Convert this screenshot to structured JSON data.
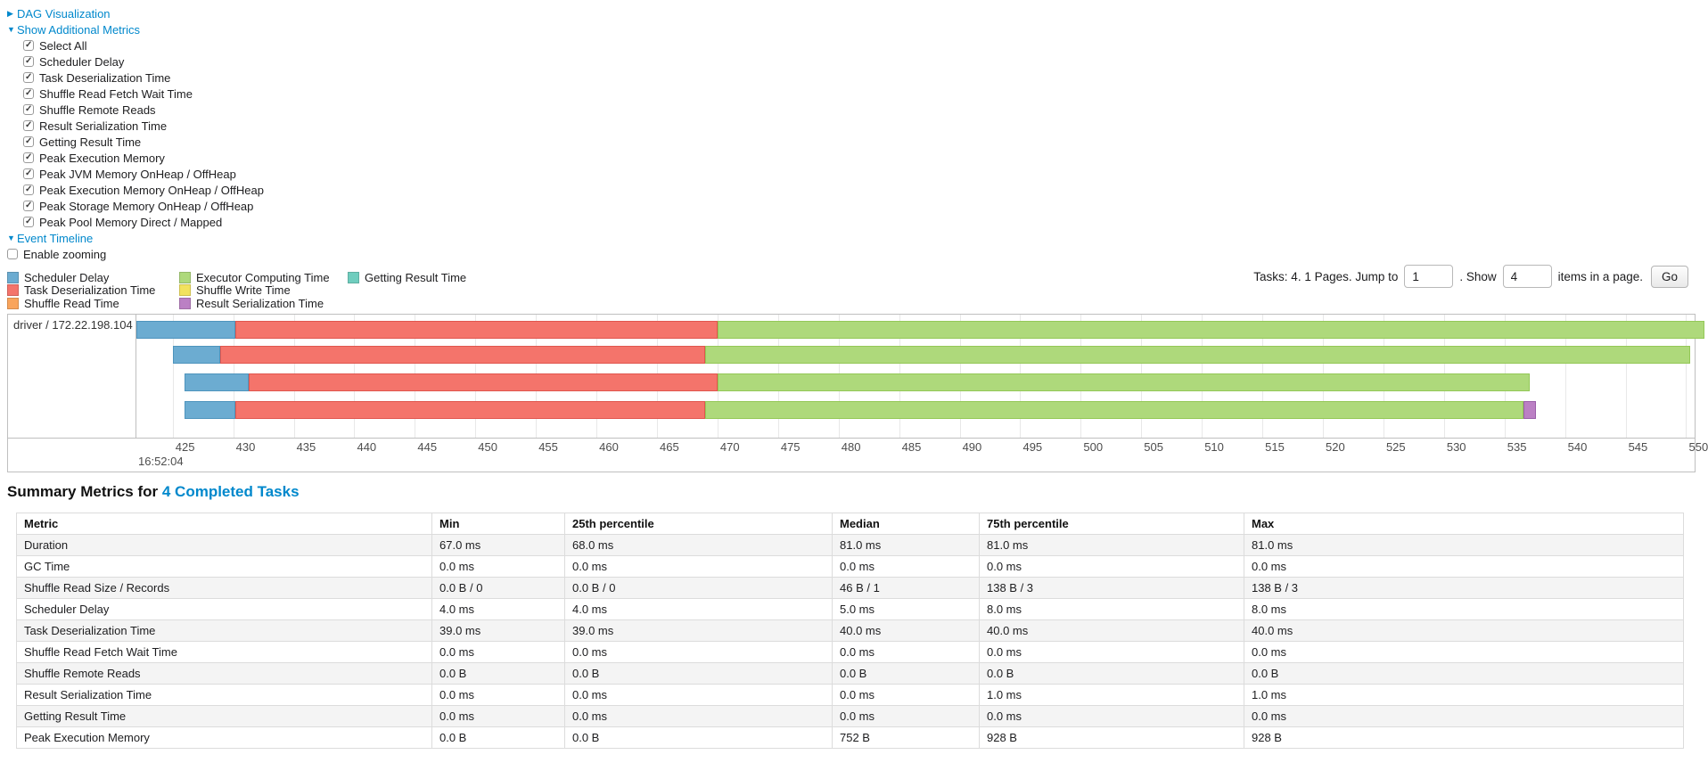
{
  "toggles": {
    "dag_label": "DAG Visualization",
    "metrics_label": "Show Additional Metrics",
    "event_timeline_label": "Event Timeline",
    "enable_zooming_label": "Enable zooming"
  },
  "metric_checkboxes": [
    "Select All",
    "Scheduler Delay",
    "Task Deserialization Time",
    "Shuffle Read Fetch Wait Time",
    "Shuffle Remote Reads",
    "Result Serialization Time",
    "Getting Result Time",
    "Peak Execution Memory",
    "Peak JVM Memory OnHeap / OffHeap",
    "Peak Execution Memory OnHeap / OffHeap",
    "Peak Storage Memory OnHeap / OffHeap",
    "Peak Pool Memory Direct / Mapped"
  ],
  "pagination": {
    "tasks_text": "Tasks: 4. 1 Pages. Jump to",
    "jump_value": "1",
    "show_text": ". Show",
    "show_value": "4",
    "items_text": "items in a page.",
    "go_label": "Go"
  },
  "chart_data": {
    "type": "timeline",
    "group": "driver / 172.22.198.104",
    "axis": {
      "domain": [
        422.0,
        550.7
      ],
      "tick_start": 425,
      "tick_step": 5,
      "tick_end": 550,
      "major_label": "16:52:04",
      "unit": "ms within 16:52:04"
    },
    "colors": {
      "scheduler_delay": "#6CACD1",
      "task_deserialization": "#F4746B",
      "shuffle_read": "#F9A45C",
      "executor_computing": "#AED97B",
      "shuffle_write": "#F2E25E",
      "result_serialization": "#BB80C4",
      "getting_result": "#6FCDBE"
    },
    "borders": {
      "scheduler_delay": "#4E94BD",
      "task_deserialization": "#E0564E",
      "shuffle_read": "#E08A3C",
      "executor_computing": "#94C857",
      "shuffle_write": "#D9C93E",
      "result_serialization": "#9A5FA8",
      "getting_result": "#4FB3A4"
    },
    "legend": [
      {
        "key": "scheduler_delay",
        "label": "Scheduler Delay"
      },
      {
        "key": "task_deserialization",
        "label": "Task Deserialization Time"
      },
      {
        "key": "shuffle_read",
        "label": "Shuffle Read Time"
      },
      {
        "key": "executor_computing",
        "label": "Executor Computing Time"
      },
      {
        "key": "shuffle_write",
        "label": "Shuffle Write Time"
      },
      {
        "key": "result_serialization",
        "label": "Result Serialization Time"
      },
      {
        "key": "getting_result",
        "label": "Getting Result Time"
      }
    ],
    "tasks": [
      {
        "segments": [
          {
            "name": "scheduler_delay",
            "start": 422.0,
            "end": 430.2
          },
          {
            "name": "task_deserialization",
            "start": 430.2,
            "end": 470.0
          },
          {
            "name": "executor_computing",
            "start": 470.0,
            "end": 551.5
          }
        ]
      },
      {
        "segments": [
          {
            "name": "scheduler_delay",
            "start": 425.0,
            "end": 428.9
          },
          {
            "name": "task_deserialization",
            "start": 428.9,
            "end": 469.0
          },
          {
            "name": "executor_computing",
            "start": 469.0,
            "end": 550.3
          }
        ]
      },
      {
        "segments": [
          {
            "name": "scheduler_delay",
            "start": 426.0,
            "end": 431.3
          },
          {
            "name": "task_deserialization",
            "start": 431.3,
            "end": 470.0
          },
          {
            "name": "executor_computing",
            "start": 470.0,
            "end": 537.1
          }
        ]
      },
      {
        "segments": [
          {
            "name": "scheduler_delay",
            "start": 426.0,
            "end": 430.2
          },
          {
            "name": "task_deserialization",
            "start": 430.2,
            "end": 469.0
          },
          {
            "name": "executor_computing",
            "start": 469.0,
            "end": 536.6
          },
          {
            "name": "result_serialization",
            "start": 536.6,
            "end": 537.6
          }
        ]
      }
    ]
  },
  "summary": {
    "title_prefix": "Summary Metrics for",
    "title_link": "4 Completed Tasks"
  },
  "table": {
    "headers": [
      "Metric",
      "Min",
      "25th percentile",
      "Median",
      "75th percentile",
      "Max"
    ],
    "rows": [
      {
        "metric": "Duration",
        "values": [
          "67.0 ms",
          "68.0 ms",
          "81.0 ms",
          "81.0 ms",
          "81.0 ms"
        ]
      },
      {
        "metric": "GC Time",
        "values": [
          "0.0 ms",
          "0.0 ms",
          "0.0 ms",
          "0.0 ms",
          "0.0 ms"
        ]
      },
      {
        "metric": "Shuffle Read Size / Records",
        "values": [
          "0.0 B / 0",
          "0.0 B / 0",
          "46 B / 1",
          "138 B / 3",
          "138 B / 3"
        ]
      },
      {
        "metric": "Scheduler Delay",
        "values": [
          "4.0 ms",
          "4.0 ms",
          "5.0 ms",
          "8.0 ms",
          "8.0 ms"
        ]
      },
      {
        "metric": "Task Deserialization Time",
        "values": [
          "39.0 ms",
          "39.0 ms",
          "40.0 ms",
          "40.0 ms",
          "40.0 ms"
        ]
      },
      {
        "metric": "Shuffle Read Fetch Wait Time",
        "values": [
          "0.0 ms",
          "0.0 ms",
          "0.0 ms",
          "0.0 ms",
          "0.0 ms"
        ]
      },
      {
        "metric": "Shuffle Remote Reads",
        "values": [
          "0.0 B",
          "0.0 B",
          "0.0 B",
          "0.0 B",
          "0.0 B"
        ]
      },
      {
        "metric": "Result Serialization Time",
        "values": [
          "0.0 ms",
          "0.0 ms",
          "0.0 ms",
          "1.0 ms",
          "1.0 ms"
        ]
      },
      {
        "metric": "Getting Result Time",
        "values": [
          "0.0 ms",
          "0.0 ms",
          "0.0 ms",
          "0.0 ms",
          "0.0 ms"
        ]
      },
      {
        "metric": "Peak Execution Memory",
        "values": [
          "0.0 B",
          "0.0 B",
          "752 B",
          "928 B",
          "928 B"
        ]
      }
    ]
  }
}
